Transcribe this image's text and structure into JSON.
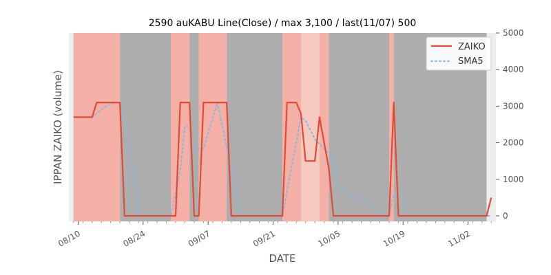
{
  "chart_data": {
    "type": "line",
    "title": "2590 auKABU Line(Close) / max 3,100 / last(11/07) 500",
    "xlabel": "DATE",
    "ylabel": "IPPAN ZAIKO (volume)",
    "ylim": [
      -150,
      5000
    ],
    "xlim": [
      "2020-08-08",
      "2020-11-08"
    ],
    "y_axis_side": "right",
    "y_ticks": [
      0,
      1000,
      2000,
      3000,
      4000,
      5000
    ],
    "y_tick_labels": [
      "0",
      "1000",
      "2000",
      "3000",
      "4000",
      "5000"
    ],
    "x_ticks": [
      "2020-08-10",
      "2020-08-24",
      "2020-09-07",
      "2020-09-21",
      "2020-10-05",
      "2020-10-19",
      "2020-11-02"
    ],
    "x_tick_labels": [
      "08/10",
      "08/24",
      "09/07",
      "09/21",
      "10/05",
      "10/19",
      "11/02"
    ],
    "grid": false,
    "legend_position": "top-right",
    "colors": {
      "zaiko": "#e24a33",
      "sma5": "#8eb8d8",
      "band_red": "#f4b0a6",
      "band_red_light": "#f6c9c1",
      "band_gray": "#adadad",
      "band_white": "#eeeeee",
      "background": "#e5e5e5"
    },
    "background_bands": [
      {
        "start": "2020-08-08",
        "end": "2020-08-09",
        "kind": "white"
      },
      {
        "start": "2020-08-09",
        "end": "2020-08-19",
        "kind": "red"
      },
      {
        "start": "2020-08-19",
        "end": "2020-08-30",
        "kind": "gray"
      },
      {
        "start": "2020-08-30",
        "end": "2020-09-03",
        "kind": "red"
      },
      {
        "start": "2020-09-03",
        "end": "2020-09-05",
        "kind": "gray"
      },
      {
        "start": "2020-09-05",
        "end": "2020-09-11",
        "kind": "red"
      },
      {
        "start": "2020-09-11",
        "end": "2020-09-23",
        "kind": "gray"
      },
      {
        "start": "2020-09-23",
        "end": "2020-09-27",
        "kind": "red"
      },
      {
        "start": "2020-09-27",
        "end": "2020-10-01",
        "kind": "red_light"
      },
      {
        "start": "2020-10-01",
        "end": "2020-10-03",
        "kind": "red"
      },
      {
        "start": "2020-10-03",
        "end": "2020-10-16",
        "kind": "gray"
      },
      {
        "start": "2020-10-16",
        "end": "2020-10-17",
        "kind": "red"
      },
      {
        "start": "2020-10-17",
        "end": "2020-11-06",
        "kind": "gray"
      },
      {
        "start": "2020-11-06",
        "end": "2020-11-08",
        "kind": "white"
      }
    ],
    "series": [
      {
        "name": "ZAIKO",
        "x": [
          "2020-08-09",
          "2020-08-13",
          "2020-08-14",
          "2020-08-19",
          "2020-08-20",
          "2020-08-31",
          "2020-09-01",
          "2020-09-03",
          "2020-09-04",
          "2020-09-05",
          "2020-09-06",
          "2020-09-11",
          "2020-09-12",
          "2020-09-23",
          "2020-09-24",
          "2020-09-26",
          "2020-09-27",
          "2020-09-28",
          "2020-09-30",
          "2020-10-01",
          "2020-10-02",
          "2020-10-03",
          "2020-10-04",
          "2020-10-16",
          "2020-10-17",
          "2020-10-18",
          "2020-11-06",
          "2020-11-07"
        ],
        "values": [
          2700,
          2700,
          3100,
          3100,
          0,
          0,
          3100,
          3100,
          0,
          0,
          3100,
          3100,
          0,
          0,
          3100,
          3100,
          2800,
          1500,
          1500,
          2700,
          2000,
          1300,
          0,
          0,
          3100,
          0,
          0,
          500
        ]
      },
      {
        "name": "SMA5",
        "x": [
          "2020-08-13",
          "2020-08-14",
          "2020-08-16",
          "2020-08-18",
          "2020-08-19",
          "2020-08-22",
          "2020-08-23",
          "2020-08-30",
          "2020-09-01",
          "2020-09-02",
          "2020-09-03",
          "2020-09-04",
          "2020-09-06",
          "2020-09-09",
          "2020-09-10",
          "2020-09-11",
          "2020-09-12",
          "2020-09-14",
          "2020-09-23",
          "2020-09-27",
          "2020-09-28",
          "2020-09-30",
          "2020-10-03",
          "2020-10-04",
          "2020-10-05",
          "2020-10-16",
          "2020-10-17",
          "2020-10-19",
          "2020-10-20",
          "2020-11-07"
        ],
        "values": [
          2700,
          2800,
          3000,
          3100,
          3100,
          1200,
          0,
          0,
          1250,
          2450,
          2450,
          1850,
          1850,
          3100,
          2500,
          1850,
          1250,
          0,
          0,
          2700,
          2600,
          2100,
          1700,
          1500,
          800,
          0,
          600,
          600,
          0,
          0
        ]
      }
    ]
  }
}
